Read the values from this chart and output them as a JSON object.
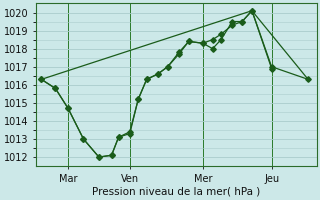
{
  "background_color": "#cce8e8",
  "grid_color": "#aacccc",
  "line_color": "#1a5c1a",
  "marker_color": "#1a5c1a",
  "xlabel": "Pression niveau de la mer( hPa )",
  "ylim": [
    1011.5,
    1020.5
  ],
  "yticks": [
    1012,
    1013,
    1014,
    1015,
    1016,
    1017,
    1018,
    1019,
    1020
  ],
  "xlim": [
    0,
    1.0
  ],
  "day_positions": [
    0.115,
    0.335,
    0.595,
    0.84
  ],
  "day_labels": [
    "Mar",
    "Ven",
    "Mer",
    "Jeu"
  ],
  "vline_positions": [
    0.115,
    0.335,
    0.595,
    0.84
  ],
  "line1_x": [
    0.02,
    0.07,
    0.115,
    0.17,
    0.225,
    0.27,
    0.295,
    0.335,
    0.365,
    0.395,
    0.435,
    0.47,
    0.51,
    0.545,
    0.595,
    0.63,
    0.66,
    0.7,
    0.735,
    0.77,
    0.84
  ],
  "line1_y": [
    1016.3,
    1015.8,
    1014.7,
    1013.0,
    1012.0,
    1012.1,
    1013.1,
    1013.4,
    1015.2,
    1016.3,
    1016.6,
    1017.0,
    1017.7,
    1018.4,
    1018.3,
    1018.5,
    1018.8,
    1019.3,
    1019.5,
    1020.1,
    1016.9
  ],
  "line2_x": [
    0.02,
    0.07,
    0.115,
    0.17,
    0.225,
    0.27,
    0.295,
    0.335,
    0.365,
    0.395,
    0.435,
    0.47,
    0.51,
    0.545,
    0.595,
    0.63,
    0.66,
    0.7,
    0.735,
    0.77,
    0.84,
    0.97
  ],
  "line2_y": [
    1016.3,
    1015.8,
    1014.7,
    1013.0,
    1012.0,
    1012.1,
    1013.1,
    1013.3,
    1015.2,
    1016.3,
    1016.6,
    1017.0,
    1017.8,
    1018.4,
    1018.3,
    1018.0,
    1018.5,
    1019.5,
    1019.5,
    1020.1,
    1017.0,
    1016.3
  ],
  "line3_x": [
    0.02,
    0.77,
    0.97
  ],
  "line3_y": [
    1016.3,
    1020.1,
    1016.3
  ],
  "figsize": [
    3.2,
    2.0
  ],
  "dpi": 100
}
